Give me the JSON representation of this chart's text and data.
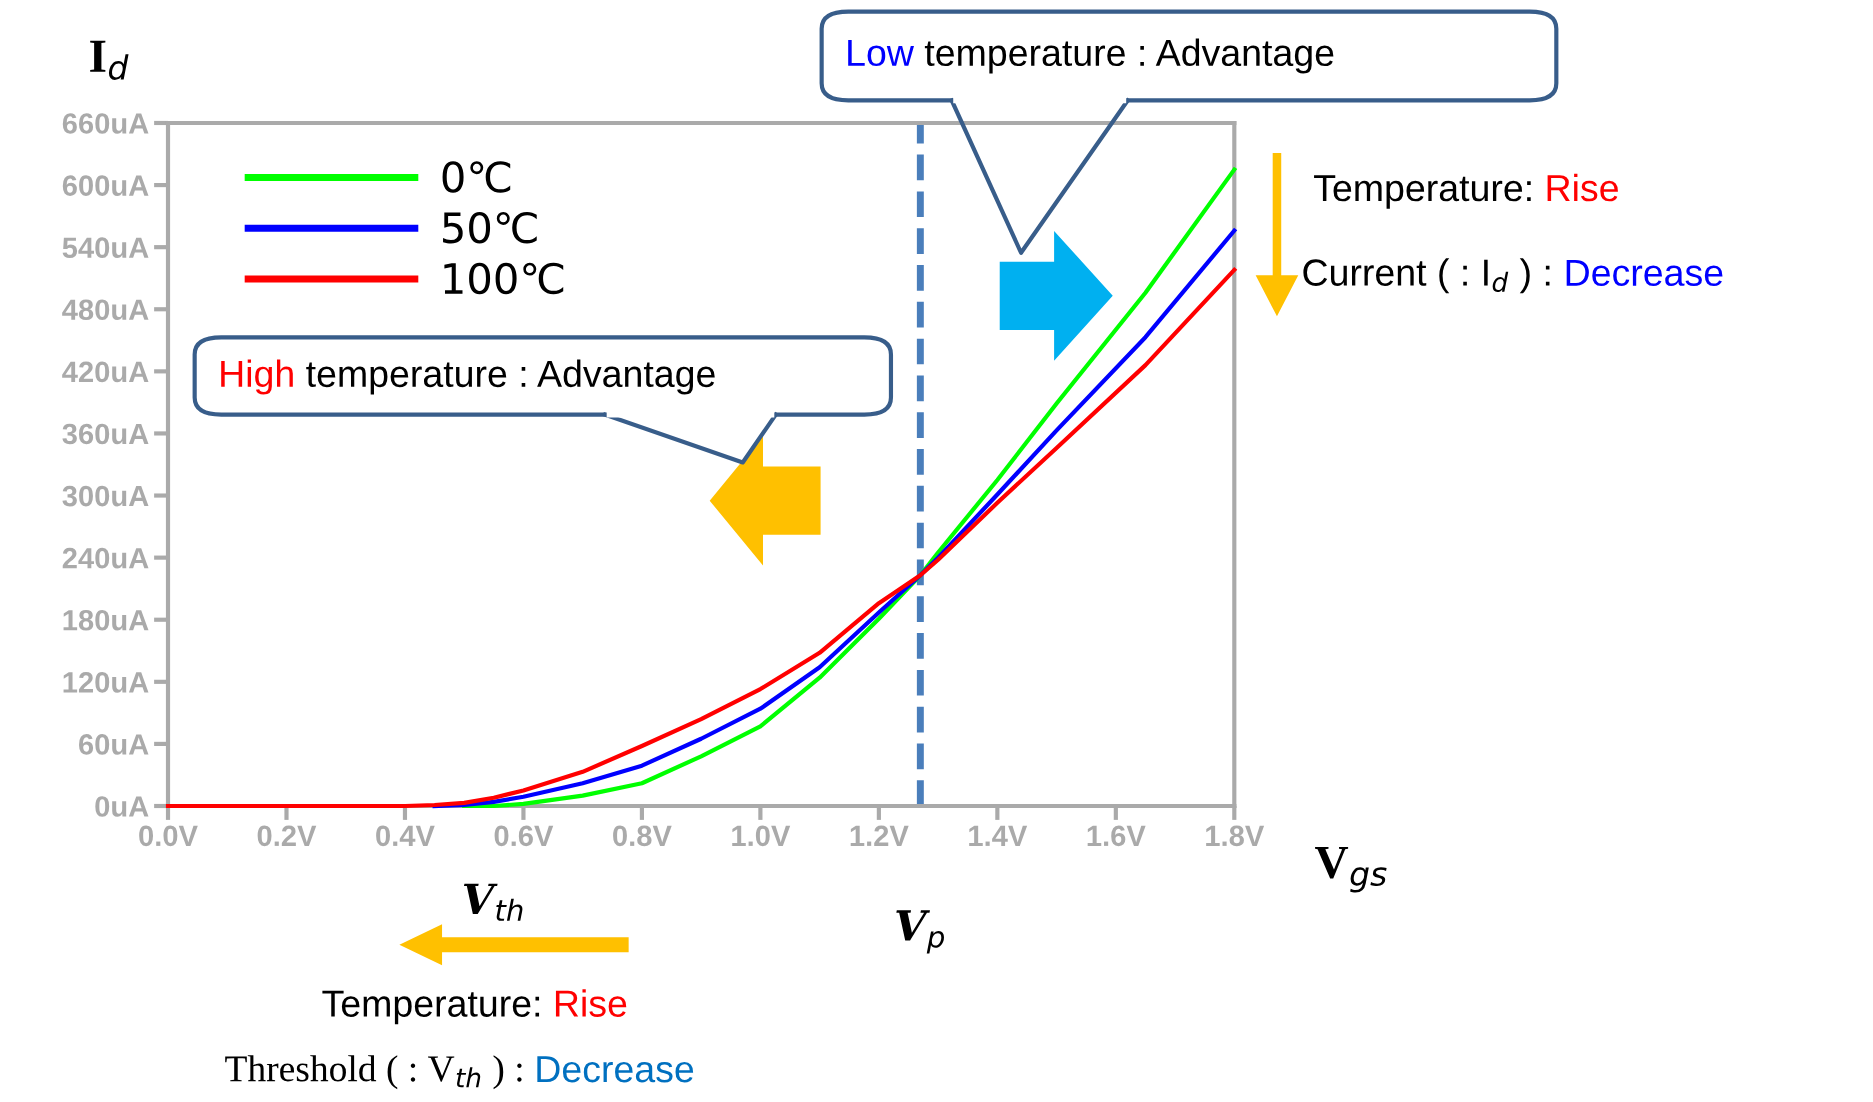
{
  "chart_data": {
    "type": "line",
    "xlabel": "V$_{gs}$",
    "ylabel": "I$_{d}$",
    "x": [
      0,
      0.1,
      0.2,
      0.3,
      0.4,
      0.45,
      0.5,
      0.55,
      0.6,
      0.7,
      0.8,
      0.9,
      1.0,
      1.1,
      1.2,
      1.27,
      1.3,
      1.4,
      1.5,
      1.65,
      1.8
    ],
    "series": [
      {
        "name": "0℃",
        "color": "#00ff00",
        "values": [
          null,
          null,
          null,
          null,
          null,
          null,
          0,
          0,
          2,
          10,
          22,
          48,
          77,
          124,
          181,
          223,
          245,
          315,
          389,
          496,
          615
        ]
      },
      {
        "name": "50℃",
        "color": "#0000ff",
        "values": [
          null,
          null,
          null,
          null,
          null,
          0,
          1,
          4,
          9,
          22,
          39,
          65,
          94,
          134,
          187,
          223,
          240,
          301,
          363,
          453,
          556
        ]
      },
      {
        "name": "100℃",
        "color": "#ff0000",
        "values": [
          0,
          0,
          0,
          0,
          0,
          1,
          3,
          8,
          15,
          33,
          58,
          84,
          113,
          148,
          196,
          223,
          238,
          293,
          346,
          426,
          518
        ]
      }
    ],
    "xlim": [
      0,
      1.8
    ],
    "ylim": [
      0,
      660
    ],
    "xticks": [
      {
        "value": 0,
        "label": "0.0V"
      },
      {
        "value": 0.2,
        "label": "0.2V"
      },
      {
        "value": 0.4,
        "label": "0.4V"
      },
      {
        "value": 0.6,
        "label": "0.6V"
      },
      {
        "value": 0.8,
        "label": "0.8V"
      },
      {
        "value": 1.0,
        "label": "1.0V"
      },
      {
        "value": 1.2,
        "label": "1.2V"
      },
      {
        "value": 1.4,
        "label": "1.4V"
      },
      {
        "value": 1.6,
        "label": "1.6V"
      },
      {
        "value": 1.8,
        "label": "1.8V"
      }
    ],
    "yticks": [
      {
        "value": 0,
        "label": "0uA"
      },
      {
        "value": 60,
        "label": "60uA"
      },
      {
        "value": 120,
        "label": "120uA"
      },
      {
        "value": 180,
        "label": "180uA"
      },
      {
        "value": 240,
        "label": "240uA"
      },
      {
        "value": 300,
        "label": "300uA"
      },
      {
        "value": 360,
        "label": "360uA"
      },
      {
        "value": 420,
        "label": "420uA"
      },
      {
        "value": 480,
        "label": "480uA"
      },
      {
        "value": 540,
        "label": "540uA"
      },
      {
        "value": 600,
        "label": "600uA"
      },
      {
        "value": 660,
        "label": "660uA"
      }
    ],
    "ref_lines": [
      {
        "axis": "x",
        "value": 1.27,
        "label": "V$_{p}$",
        "color": "#4a7ebb",
        "line_style": "dashed"
      }
    ],
    "annotations": [
      "Low",
      " temperature : Advantage",
      "High",
      " temperature : Advantage",
      "Temperature: ",
      "Rise",
      "Current ( : I$_{d}$ ) : ",
      "Decrease",
      "Temperature: ",
      "Rise",
      "Threshold ( : V$_{th}$ ) : ",
      "Decrease",
      {
        "text": "V$_{th}$",
        "x": 0.55,
        "y": 0
      }
    ],
    "legend": "top left",
    "grid": false,
    "marker": "none",
    "line_style": "solid"
  }
}
